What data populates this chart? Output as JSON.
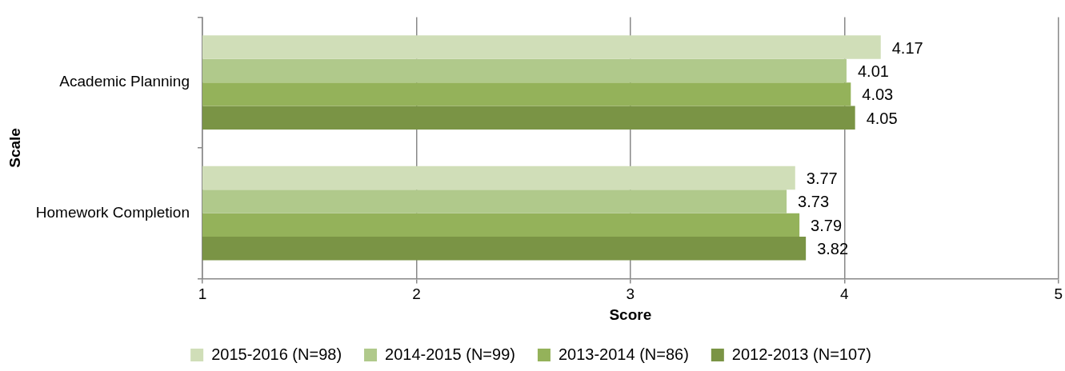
{
  "chart_data": {
    "type": "bar",
    "orientation": "horizontal",
    "xlabel": "Score",
    "ylabel": "Scale",
    "categories": [
      "Academic Planning",
      "Homework Completion"
    ],
    "series": [
      {
        "name": "2015-2016 (N=98)",
        "color": "#d0deb8",
        "values": [
          4.17,
          3.77
        ]
      },
      {
        "name": "2014-2015 (N=99)",
        "color": "#b0c98b",
        "values": [
          4.01,
          3.73
        ]
      },
      {
        "name": "2013-2014 (N=86)",
        "color": "#94b25a",
        "values": [
          4.03,
          3.79
        ]
      },
      {
        "name": "2012-2013 (N=107)",
        "color": "#7a9445",
        "values": [
          4.05,
          3.82
        ]
      }
    ],
    "xlim": [
      1,
      5
    ],
    "xticks": [
      1,
      2,
      3,
      4,
      5
    ],
    "grid": "x",
    "legend": "bottom",
    "data_labels": true
  }
}
